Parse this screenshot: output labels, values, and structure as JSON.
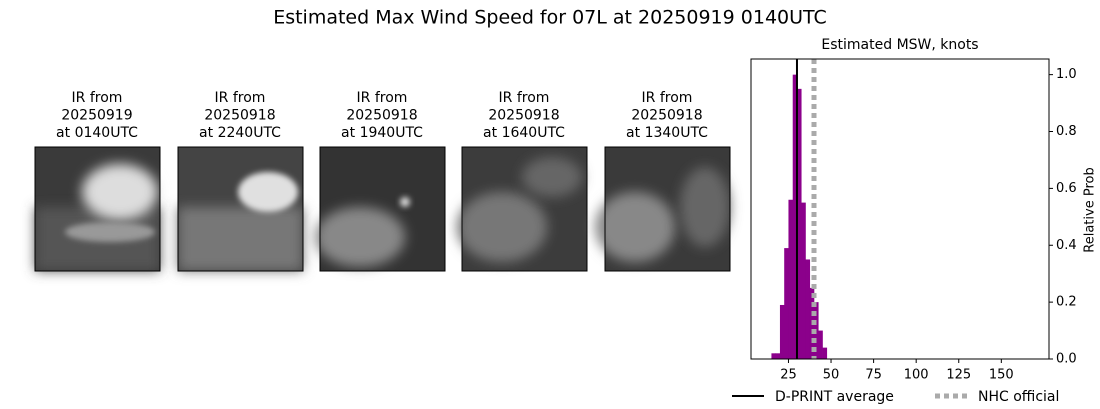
{
  "title": "Estimated Max Wind Speed for 07L at 20250919 0140UTC",
  "panels": [
    {
      "title_lines": [
        "IR from",
        "20250919",
        "at 0140UTC"
      ]
    },
    {
      "title_lines": [
        "IR from",
        "20250918",
        "at 2240UTC"
      ]
    },
    {
      "title_lines": [
        "IR from",
        "20250918",
        "at 1940UTC"
      ]
    },
    {
      "title_lines": [
        "IR from",
        "20250918",
        "at 1640UTC"
      ]
    },
    {
      "title_lines": [
        "IR from",
        "20250918",
        "at 1340UTC"
      ]
    }
  ],
  "chart_data": {
    "type": "histogram",
    "title": "Estimated MSW, knots",
    "y_label": "Relative Prob",
    "bins": [
      15,
      17.5,
      20,
      22.5,
      25,
      27.5,
      30,
      32.5,
      35,
      37.5,
      40,
      42.5,
      45,
      47.5
    ],
    "values": [
      0.02,
      0.02,
      0.19,
      0.39,
      0.56,
      1.0,
      0.95,
      0.55,
      0.35,
      0.25,
      0.2,
      0.1,
      0.04
    ],
    "color": "#8b008b",
    "xlim": [
      3,
      178
    ],
    "xticks": [
      25,
      50,
      75,
      100,
      125,
      150
    ],
    "ylim": [
      0,
      1.055
    ],
    "yticks": [
      {
        "value": 0,
        "label": "0.0"
      },
      {
        "value": 0.2,
        "label": "0.2"
      },
      {
        "value": 0.4,
        "label": "0.4"
      },
      {
        "value": 0.6,
        "label": "0.6"
      },
      {
        "value": 0.8,
        "label": "0.8"
      },
      {
        "value": 1.0,
        "label": "1.0"
      }
    ],
    "lines": [
      {
        "name": "D-PRINT average",
        "value": 30,
        "color": "#000000",
        "style": "solid"
      },
      {
        "name": "NHC official",
        "value": 40,
        "color": "#aaaaaa",
        "style": "dotted"
      }
    ],
    "legend": "bottom"
  }
}
